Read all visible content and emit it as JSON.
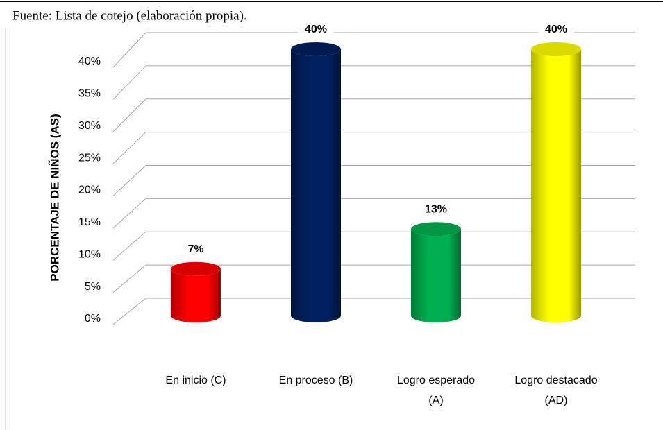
{
  "chart_data": {
    "type": "bar3d",
    "subtitle": "Fuente: Lista de cotejo (elaboración propia).",
    "y_label": "PORCENTAJE DE NIÑOS (AS)",
    "categories": [
      "En inicio (C)",
      "En proceso (B)",
      "Logro esperado (A)",
      "Logro destacado (AD)"
    ],
    "values": [
      7,
      40,
      13,
      40
    ],
    "value_labels": [
      "7%",
      "40%",
      "13%",
      "40%"
    ],
    "colors": [
      "#ff0000",
      "#002060",
      "#00b050",
      "#ffff00"
    ],
    "ylim": [
      0,
      40
    ],
    "yticks": [
      {
        "value": 0,
        "label": "0%"
      },
      {
        "value": 5,
        "label": "5%"
      },
      {
        "value": 10,
        "label": "10%"
      },
      {
        "value": 15,
        "label": "15%"
      },
      {
        "value": 20,
        "label": "20%"
      },
      {
        "value": 25,
        "label": "25%"
      },
      {
        "value": 30,
        "label": "30%"
      },
      {
        "value": 35,
        "label": "35%"
      },
      {
        "value": 40,
        "label": "40%"
      }
    ],
    "grid": true
  }
}
